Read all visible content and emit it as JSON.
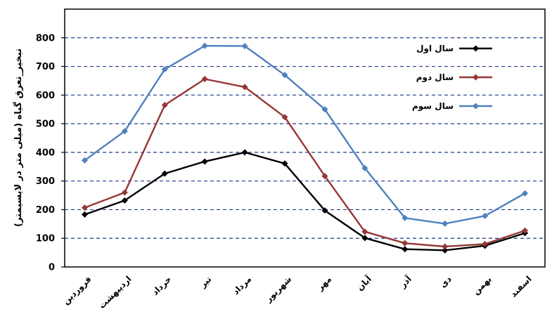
{
  "chart_data": {
    "type": "line",
    "ylabel": "تبخیر_تعرق گیاه (میلی متر در لایسیمتر)",
    "xlabel": "",
    "title": "",
    "ylim": [
      0,
      900
    ],
    "yticks": [
      0,
      100,
      200,
      300,
      400,
      500,
      600,
      700,
      800
    ],
    "grid": true,
    "grid_style": "dashed",
    "legend_position": "top-right",
    "categories": [
      "فروردین",
      "اردیبهشت",
      "خرداد",
      "تیر",
      "مرداد",
      "شهریور",
      "مهر",
      "آبان",
      "آذر",
      "دی",
      "بهمن",
      "اسفند"
    ],
    "series": [
      {
        "name": "سال اول",
        "color": "#000000",
        "values": [
          183,
          232,
          326,
          368,
          400,
          361,
          197,
          101,
          62,
          58,
          74,
          118
        ]
      },
      {
        "name": "سال دوم",
        "color": "#953735",
        "values": [
          207,
          260,
          565,
          656,
          628,
          523,
          317,
          123,
          83,
          71,
          80,
          127
        ]
      },
      {
        "name": "سال سوم",
        "color": "#4F81BD",
        "values": [
          372,
          474,
          690,
          772,
          771,
          670,
          550,
          345,
          171,
          151,
          178,
          257
        ]
      }
    ]
  }
}
